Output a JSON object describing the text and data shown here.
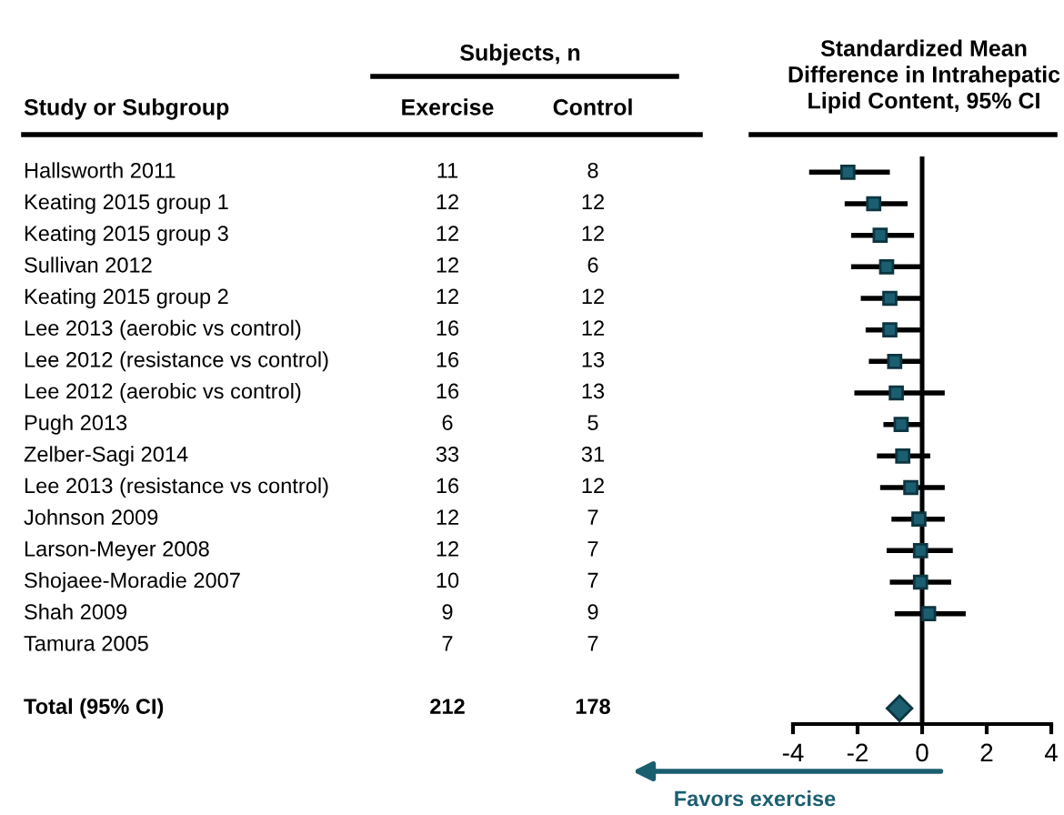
{
  "chart_data": [
    {
      "type": "other",
      "title": "Subjects, n",
      "annotations": [
        "Study or Subgroup"
      ],
      "data_labels": true,
      "categories": [
        "Hallsworth 2011",
        "Keating 2015 group 1",
        "Keating 2015 group 3",
        "Sullivan 2012",
        "Keating 2015 group 2",
        "Lee 2013 (aerobic vs control)",
        "Lee 2012 (resistance vs control)",
        "Lee 2012 (aerobic vs control)",
        "Pugh 2013",
        "Zelber-Sagi 2014",
        "Lee 2013 (resistance vs control)",
        "Johnson 2009",
        "Larson-Meyer 2008",
        "Shojaee-Moradie 2007",
        "Shah 2009",
        "Tamura 2005",
        null,
        "Total (95% CI)"
      ],
      "series": [
        {
          "name": "Exercise",
          "values": [
            11,
            12,
            12,
            12,
            12,
            16,
            16,
            16,
            6,
            33,
            16,
            12,
            12,
            10,
            9,
            7,
            null,
            212
          ]
        },
        {
          "name": "Control",
          "values": [
            8,
            12,
            12,
            6,
            12,
            12,
            13,
            13,
            5,
            31,
            12,
            7,
            7,
            7,
            9,
            7,
            null,
            178
          ]
        }
      ]
    },
    {
      "type": "scatter",
      "orientation": "horizontal",
      "title": "Standardized Mean\nDifference in Intrahepatic\nLipid Content, 95% CI",
      "annotations": [
        "Favors exercise"
      ],
      "categories": [
        null,
        null,
        null,
        null,
        null,
        null,
        null,
        null,
        null,
        null,
        null,
        null,
        null,
        null,
        null,
        null,
        null,
        null
      ],
      "series": [
        {
          "color": "#1b5e70",
          "marker": "square",
          "values": [
            -2.3,
            -1.5,
            -1.3,
            -1.1,
            -1.0,
            -1.0,
            -0.85,
            -0.8,
            -0.65,
            -0.6,
            -0.35,
            -0.1,
            -0.05,
            -0.05,
            0.2,
            null,
            null,
            null
          ],
          "errors": [
            [
              -3.5,
              -1.0
            ],
            [
              -2.4,
              -0.45
            ],
            [
              -2.2,
              -0.25
            ],
            [
              -2.2,
              0.0
            ],
            [
              -1.9,
              0.0
            ],
            [
              -1.75,
              0.0
            ],
            [
              -1.65,
              0.0
            ],
            [
              -2.1,
              0.7
            ],
            [
              -1.2,
              0.0
            ],
            [
              -1.4,
              0.25
            ],
            [
              -1.3,
              0.7
            ],
            [
              -0.95,
              0.7
            ],
            [
              -1.1,
              0.95
            ],
            [
              -1.0,
              0.9
            ],
            [
              -0.85,
              1.35
            ],
            null,
            null,
            null
          ]
        },
        {
          "color": "#1b5e70",
          "marker": "diamond",
          "values": [
            null,
            null,
            null,
            null,
            null,
            null,
            null,
            null,
            null,
            null,
            null,
            null,
            null,
            null,
            null,
            null,
            null,
            -0.7
          ]
        }
      ],
      "xlim": [
        -4,
        4
      ],
      "xticks": [
        -4,
        -2,
        0,
        2,
        4
      ],
      "ref_lines": [
        {
          "axis": "x",
          "value": 0
        }
      ],
      "tick_labels": "x"
    }
  ]
}
